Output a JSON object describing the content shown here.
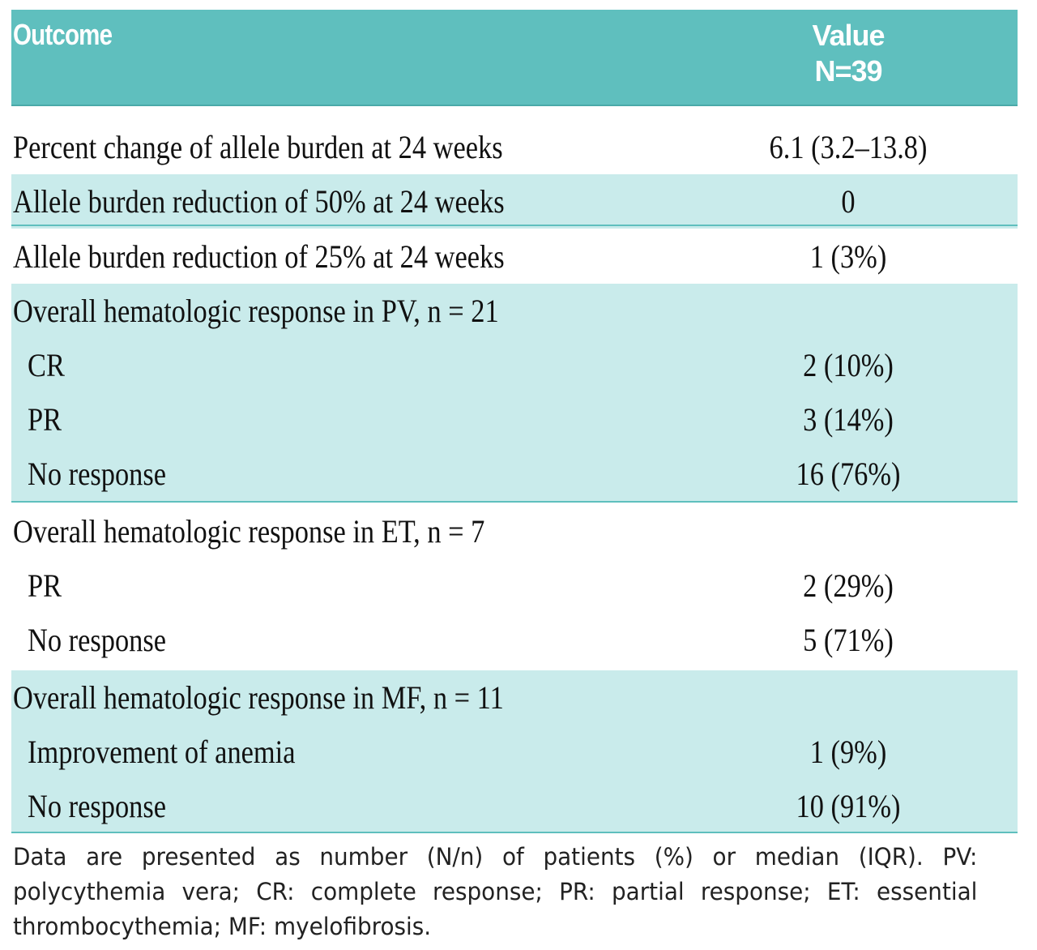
{
  "table": {
    "header": {
      "outcome": "Outcome",
      "value_line1": "Value",
      "value_line2": "N=39"
    },
    "rows": [
      {
        "label": "Percent change of allele burden at 24 weeks",
        "value": "6.1 (3.2–13.8)"
      },
      {
        "label": "Allele burden reduction of 50% at 24 weeks",
        "value": "0"
      },
      {
        "label": "Allele burden reduction of 25% at 24 weeks",
        "value": "1 (3%)"
      },
      {
        "label": "Overall hematologic response in PV, n = 21",
        "value": ""
      },
      {
        "label": "CR",
        "value": "2 (10%)"
      },
      {
        "label": "PR",
        "value": "3 (14%)"
      },
      {
        "label": "No response",
        "value": "16 (76%)"
      },
      {
        "label": "Overall hematologic response in ET, n = 7",
        "value": ""
      },
      {
        "label": "PR",
        "value": "2 (29%)"
      },
      {
        "label": "No response",
        "value": "5 (71%)"
      },
      {
        "label": "Overall hematologic response in MF, n = 11",
        "value": ""
      },
      {
        "label": "Improvement of anemia",
        "value": "1 (9%)"
      },
      {
        "label": "No response",
        "value": "10 (91%)"
      }
    ],
    "footnote": "Data are presented as number (N/n) of patients (%) or median (IQR). PV: polycythemia vera; CR: complete response; PR: partial response; ET: essential thrombocythemia; MF: myelofibrosis."
  },
  "colors": {
    "header_bg": "#5fbfbe",
    "shaded_bg": "#c9ebeb",
    "rule": "#5fbfbe"
  }
}
